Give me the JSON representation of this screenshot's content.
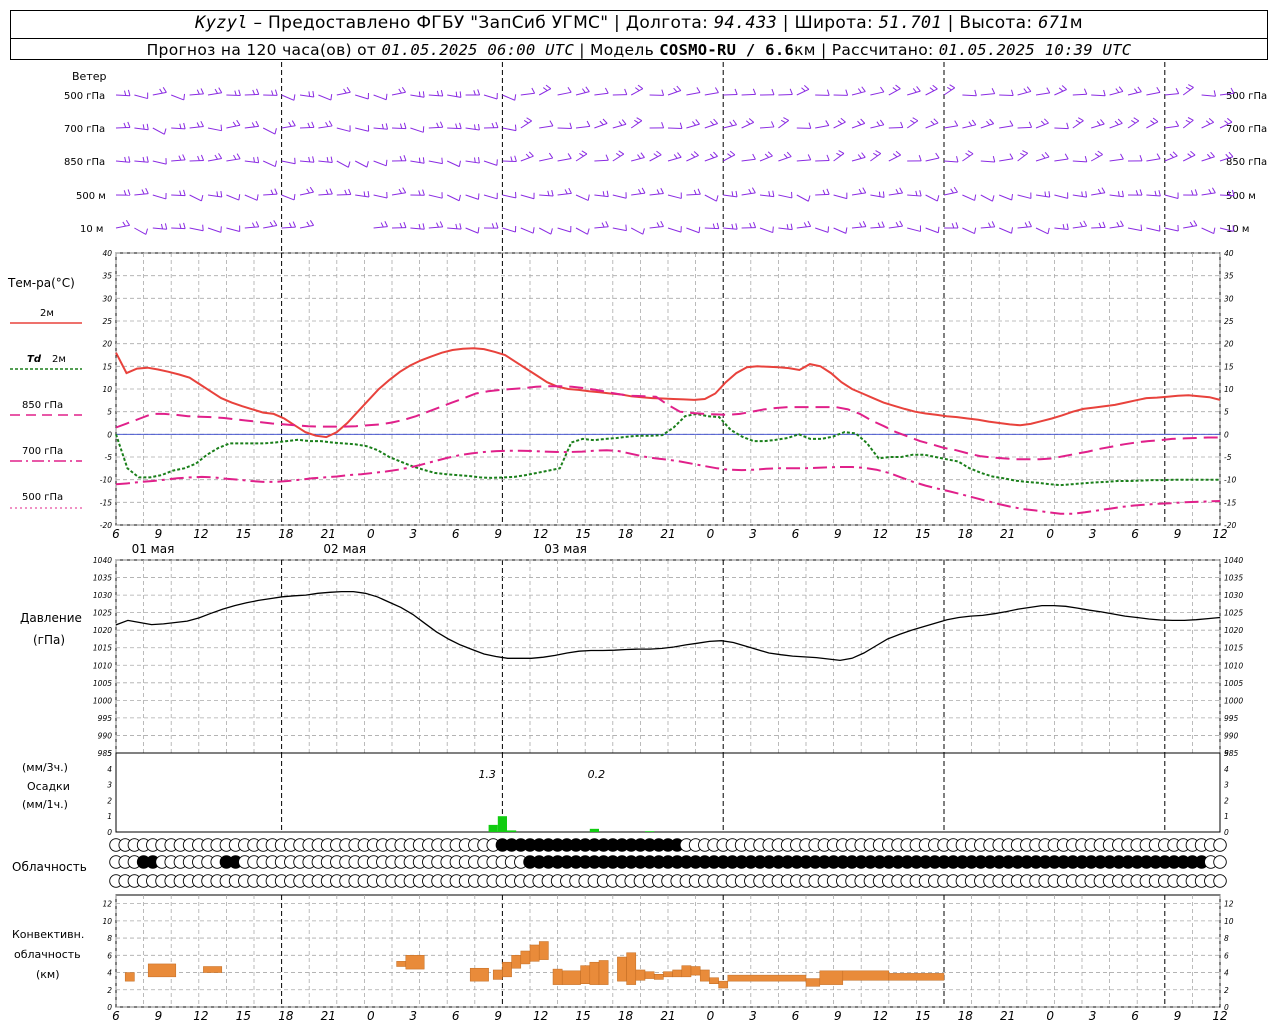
{
  "header": {
    "station": "Kyzyl",
    "provider": " – Предоставлено ФГБУ \"ЗапСиб УГМС\" | Долгота: ",
    "lon": "94.433",
    "lat_label": " | Широта: ",
    "lat": "51.701",
    "alt_label": " | Высота: ",
    "alt": "671",
    "alt_unit": "м",
    "forecast_label": "Прогноз на 120 часа(ов) от ",
    "forecast_from": "01.05.2025 06:00 UTC",
    "model_label": " | Модель ",
    "model": "COSMO-RU / 6.6",
    "model_unit": "км",
    "calc_label": " | Рассчитано: ",
    "calc_time": "01.05.2025 10:39 UTC"
  },
  "labels": {
    "wind": "Ветер",
    "levels": [
      "500 гПа",
      "700 гПа",
      "850 гПа",
      "500 м",
      "10 м"
    ],
    "temp": "Тем-ра(°C)",
    "t2m": "2м",
    "td2m_a": "Td",
    "td2m_b": "2м",
    "t850": "850 гПа",
    "t700": "700 гПа",
    "t500": "500 гПа",
    "pressure": "Давление",
    "pressure_unit": "(гПа)",
    "precip_unit3": "(мм/3ч.)",
    "precip": "Осадки",
    "precip_unit1": "(мм/1ч.)",
    "cloud": "Облачность",
    "conv1": "Конвективн.",
    "conv2": "облачность",
    "conv3": "(км)",
    "precip_total1": "1.3",
    "precip_total2": "0.2"
  },
  "colors": {
    "t2m": "#e8423c",
    "td2m": "#1a7f1a",
    "t850": "#e0208a",
    "t700": "#e0208a",
    "wind": "#8a2be2",
    "precip": "#11cc11",
    "conv": "#e98b3a"
  },
  "chart_data": [
    {
      "type": "line",
      "title": "Тем-ра(°C)",
      "x_hours": [
        6,
        7,
        8,
        9,
        10,
        11,
        12,
        13,
        14,
        15,
        16,
        17,
        18,
        19,
        20,
        21,
        22,
        23,
        24,
        25,
        26,
        27,
        28,
        29,
        30,
        31,
        32,
        33,
        34,
        35,
        36,
        37,
        38,
        39,
        40,
        41,
        42,
        43,
        44,
        45,
        46,
        47,
        48,
        49,
        50,
        51,
        52,
        53,
        54,
        55,
        56,
        57,
        58,
        59,
        60,
        61,
        62,
        63,
        64,
        65,
        66,
        67,
        68,
        69,
        70,
        71,
        72,
        73,
        74,
        75,
        76,
        77,
        78,
        79,
        80,
        81,
        82,
        83,
        84,
        85,
        86,
        87,
        88,
        89,
        90,
        91,
        92,
        93,
        94,
        95,
        96,
        97,
        98,
        99,
        100,
        101,
        102,
        103,
        104,
        105,
        106,
        107,
        108,
        109,
        110,
        111,
        112,
        113,
        114,
        115,
        116,
        117,
        118,
        119,
        120,
        121,
        122,
        123,
        124,
        125,
        126
      ],
      "x_ticks": [
        "6",
        "9",
        "12",
        "15",
        "18",
        "21",
        "0",
        "3",
        "6",
        "9",
        "12",
        "15",
        "18",
        "21",
        "0",
        "3",
        "6",
        "9",
        "12",
        "15",
        "18",
        "21",
        "0",
        "3",
        "6",
        "9",
        "12"
      ],
      "day_labels": [
        "01 мая",
        "02 мая",
        "03 мая"
      ],
      "ylim": [
        -20,
        40
      ],
      "series": [
        {
          "name": "2м",
          "values": [
            18,
            13.5,
            14.5,
            14.7,
            14.3,
            13.8,
            13.2,
            12.5,
            11,
            9.5,
            8,
            7,
            6.2,
            5.5,
            4.8,
            4.5,
            3.5,
            2,
            0.5,
            -0.3,
            -0.6,
            0.5,
            2.5,
            5,
            7.5,
            10,
            12,
            13.8,
            15.2,
            16.3,
            17.2,
            18,
            18.6,
            18.9,
            19,
            18.8,
            18.2,
            17.5,
            16,
            14.5,
            13,
            11.5,
            10.5,
            10,
            9.8,
            9.5,
            9.3,
            9,
            8.8,
            8.4,
            8.2,
            8,
            7.9,
            7.8,
            7.7,
            7.6,
            7.8,
            9,
            11.5,
            13.5,
            14.8,
            15,
            14.9,
            14.8,
            14.6,
            14.2,
            15.5,
            15,
            13.5,
            11.5,
            10,
            9,
            8,
            7,
            6.3,
            5.6,
            5,
            4.6,
            4.3,
            4,
            3.8,
            3.5,
            3.2,
            2.8,
            2.5,
            2.2,
            2,
            2.3,
            2.9,
            3.5,
            4.2,
            5,
            5.6,
            5.9,
            6.2,
            6.5,
            7,
            7.5,
            8,
            8.1,
            8.3,
            8.5,
            8.6,
            8.4,
            8.2,
            7.6
          ]
        },
        {
          "name": "Td 2м",
          "values": [
            0,
            -7.5,
            -9.5,
            -9.5,
            -9,
            -8,
            -7.5,
            -6.5,
            -4.5,
            -3,
            -2,
            -2,
            -2,
            -2,
            -1.8,
            -1.5,
            -1.2,
            -1.5,
            -1.5,
            -1.8,
            -2,
            -2.2,
            -2.6,
            -3.5,
            -5,
            -6,
            -7,
            -7.8,
            -8.5,
            -8.8,
            -9,
            -9.2,
            -9.5,
            -9.6,
            -9.5,
            -9.4,
            -9,
            -8.5,
            -8,
            -7.5,
            -1.8,
            -1,
            -1.3,
            -1,
            -0.8,
            -0.5,
            -0.3,
            -0.3,
            -0.2,
            1.5,
            4,
            4.5,
            4,
            3.8,
            1,
            -0.5,
            -1.5,
            -1.5,
            -1.2,
            -0.8,
            0,
            -1,
            -1,
            -0.5,
            0.5,
            0.2,
            -2,
            -5.3,
            -5,
            -5,
            -4.5,
            -4.5,
            -5,
            -5.5,
            -6,
            -7.5,
            -8.5,
            -9.3,
            -9.7,
            -10.2,
            -10.5,
            -10.7,
            -11,
            -11.2,
            -11,
            -10.8,
            -10.6,
            -10.5,
            -10.3,
            -10.3,
            -10.2,
            -10.1,
            -10.1,
            -10,
            -10,
            -10,
            -10,
            -10
          ]
        },
        {
          "name": "850 гПа",
          "values": [
            1.5,
            2.5,
            3.5,
            4.5,
            4.5,
            4.3,
            4,
            3.9,
            3.8,
            3.6,
            3.3,
            3,
            2.7,
            2.4,
            2.2,
            2,
            1.8,
            1.7,
            1.7,
            1.7,
            1.8,
            2,
            2.2,
            2.6,
            3.2,
            4,
            5,
            6,
            7,
            8,
            9,
            9.5,
            9.8,
            10,
            10.2,
            10.5,
            10.6,
            10.6,
            10.5,
            10.2,
            9.8,
            9.3,
            8.8,
            8.5,
            8.4,
            8.3,
            6.5,
            5,
            4.7,
            4.5,
            4.4,
            4.3,
            4.5,
            5,
            5.5,
            5.8,
            6,
            6,
            6,
            6,
            6,
            5.5,
            4.5,
            3,
            1.8,
            0.5,
            -0.5,
            -1.5,
            -2.2,
            -3,
            -3.5,
            -4.2,
            -4.8,
            -5.1,
            -5.3,
            -5.5,
            -5.5,
            -5.5,
            -5.3,
            -4.8,
            -4.3,
            -3.8,
            -3.2,
            -2.7,
            -2.2,
            -1.8,
            -1.5,
            -1.3,
            -1,
            -0.9,
            -0.8,
            -0.7,
            -0.7
          ]
        },
        {
          "name": "700 гПа",
          "values": [
            -11,
            -10.8,
            -10.5,
            -10.3,
            -10,
            -9.7,
            -9.5,
            -9.4,
            -9.5,
            -9.8,
            -10,
            -10.3,
            -10.5,
            -10.5,
            -10.3,
            -10,
            -9.7,
            -9.5,
            -9.3,
            -9,
            -8.8,
            -8.5,
            -8.2,
            -7.8,
            -7.3,
            -6.6,
            -5.9,
            -5.2,
            -4.6,
            -4.2,
            -3.9,
            -3.7,
            -3.6,
            -3.6,
            -3.7,
            -3.8,
            -3.9,
            -3.9,
            -3.8,
            -3.6,
            -3.5,
            -3.7,
            -4.3,
            -4.9,
            -5.3,
            -5.6,
            -6,
            -6.5,
            -7,
            -7.5,
            -7.8,
            -7.9,
            -7.8,
            -7.6,
            -7.5,
            -7.5,
            -7.5,
            -7.4,
            -7.3,
            -7.2,
            -7.2,
            -7.4,
            -7.8,
            -8.5,
            -9.5,
            -10.5,
            -11.3,
            -12,
            -12.6,
            -13.3,
            -14,
            -14.7,
            -15.4,
            -16,
            -16.5,
            -16.8,
            -17.2,
            -17.5,
            -17.5,
            -17.2,
            -16.8,
            -16.4,
            -16,
            -15.7,
            -15.5,
            -15.3,
            -15.2,
            -15,
            -14.9,
            -14.8,
            -14.7
          ]
        }
      ]
    },
    {
      "type": "line",
      "title": "Давление",
      "ylabel": "(гПа)",
      "ylim": [
        985,
        1040
      ],
      "values": [
        1021.5,
        1022.8,
        1022.2,
        1021.6,
        1021.8,
        1022.2,
        1022.6,
        1023.5,
        1024.8,
        1026,
        1027,
        1027.8,
        1028.5,
        1029,
        1029.5,
        1029.8,
        1030,
        1030.5,
        1030.8,
        1031,
        1031,
        1030.5,
        1029.5,
        1028,
        1026.5,
        1024.5,
        1022,
        1019.5,
        1017.5,
        1015.8,
        1014.5,
        1013.2,
        1012.5,
        1012,
        1012,
        1012,
        1012.3,
        1012.8,
        1013.5,
        1014,
        1014.2,
        1014.2,
        1014.3,
        1014.5,
        1014.6,
        1014.6,
        1014.8,
        1015.2,
        1015.8,
        1016.3,
        1016.8,
        1017,
        1016.5,
        1015.5,
        1014.5,
        1013.5,
        1013,
        1012.6,
        1012.4,
        1012.2,
        1011.8,
        1011.4,
        1012,
        1013.5,
        1015.5,
        1017.5,
        1018.8,
        1020,
        1021,
        1022,
        1023,
        1023.6,
        1024,
        1024.2,
        1024.7,
        1025.3,
        1026,
        1026.5,
        1027,
        1027,
        1026.8,
        1026.3,
        1025.7,
        1025.2,
        1024.6,
        1024,
        1023.6,
        1023.2,
        1022.9,
        1022.8,
        1022.8,
        1023,
        1023.3,
        1023.6
      ]
    },
    {
      "type": "bar",
      "title": "Осадки",
      "ylabel": "(мм/3ч.) (мм/1ч.)",
      "ylim": [
        0,
        5
      ],
      "bars": [
        {
          "hour": 47,
          "value": 0.45
        },
        {
          "hour": 48,
          "value": 1.0
        },
        {
          "hour": 49,
          "value": 0.1
        },
        {
          "hour": 58,
          "value": 0.2
        },
        {
          "hour": 64,
          "value": 0.05
        }
      ],
      "totals": [
        {
          "hour": 47,
          "label": "1.3"
        },
        {
          "hour": 58,
          "label": "0.2"
        }
      ]
    },
    {
      "type": "bar",
      "title": "Конвективн. облачность (км)",
      "ylim": [
        0,
        13
      ],
      "segments": [
        {
          "h": [
            7,
            8
          ],
          "lo": 3,
          "hi": 4
        },
        {
          "h": [
            9.5,
            12.5
          ],
          "lo": 3.5,
          "hi": 5
        },
        {
          "h": [
            15.5,
            17.5
          ],
          "lo": 4,
          "hi": 4.7
        },
        {
          "h": [
            36.5,
            37.5
          ],
          "lo": 4.7,
          "hi": 5.3
        },
        {
          "h": [
            37.5,
            39.5
          ],
          "lo": 4.4,
          "hi": 6
        },
        {
          "h": [
            44.5,
            46.5
          ],
          "lo": 3,
          "hi": 4.5
        },
        {
          "h": [
            47,
            48
          ],
          "lo": 3.2,
          "hi": 4.3
        },
        {
          "h": [
            48,
            49
          ],
          "lo": 3.5,
          "hi": 5.2
        },
        {
          "h": [
            49,
            50
          ],
          "lo": 4.5,
          "hi": 6
        },
        {
          "h": [
            50,
            51
          ],
          "lo": 5,
          "hi": 6.5
        },
        {
          "h": [
            51,
            52
          ],
          "lo": 5.3,
          "hi": 7.2
        },
        {
          "h": [
            52,
            53
          ],
          "lo": 5.5,
          "hi": 7.6
        },
        {
          "h": [
            53.5,
            54.5
          ],
          "lo": 2.6,
          "hi": 4.4
        },
        {
          "h": [
            54.5,
            56.5
          ],
          "lo": 2.6,
          "hi": 4.2
        },
        {
          "h": [
            56.5,
            57.5
          ],
          "lo": 2.7,
          "hi": 4.8
        },
        {
          "h": [
            57.5,
            58.5
          ],
          "lo": 2.6,
          "hi": 5.2
        },
        {
          "h": [
            58.5,
            59.5
          ],
          "lo": 2.6,
          "hi": 5.4
        },
        {
          "h": [
            60.5,
            61.5
          ],
          "lo": 3,
          "hi": 5.8
        },
        {
          "h": [
            61.5,
            62.5
          ],
          "lo": 2.6,
          "hi": 6.3
        },
        {
          "h": [
            62.5,
            63.5
          ],
          "lo": 3.1,
          "hi": 4.3
        },
        {
          "h": [
            63.5,
            64.5
          ],
          "lo": 3.3,
          "hi": 4.1
        },
        {
          "h": [
            64.5,
            65.5
          ],
          "lo": 3.2,
          "hi": 3.8
        },
        {
          "h": [
            65.5,
            66.5
          ],
          "lo": 3.5,
          "hi": 4.1
        },
        {
          "h": [
            66.5,
            67.5
          ],
          "lo": 3.5,
          "hi": 4.3
        },
        {
          "h": [
            67.5,
            68.5
          ],
          "lo": 3.5,
          "hi": 4.8
        },
        {
          "h": [
            68.5,
            69.5
          ],
          "lo": 3.7,
          "hi": 4.7
        },
        {
          "h": [
            69.5,
            70.5
          ],
          "lo": 3.0,
          "hi": 4.3
        },
        {
          "h": [
            70.5,
            71.5
          ],
          "lo": 2.7,
          "hi": 3.4
        },
        {
          "h": [
            71.5,
            72.5
          ],
          "lo": 2.2,
          "hi": 3.0
        },
        {
          "h": [
            72.5,
            81
          ],
          "lo": 3.0,
          "hi": 3.7
        },
        {
          "h": [
            81,
            82.5
          ],
          "lo": 2.4,
          "hi": 3.3
        },
        {
          "h": [
            82.5,
            85
          ],
          "lo": 2.6,
          "hi": 4.2
        },
        {
          "h": [
            85,
            90
          ],
          "lo": 3.1,
          "hi": 4.2
        },
        {
          "h": [
            90,
            96
          ],
          "lo": 3.1,
          "hi": 3.9
        }
      ]
    }
  ],
  "cloud_rows": {
    "row1_dark_hours": [
      48,
      49,
      50,
      51,
      52,
      53,
      54,
      55,
      56,
      57,
      58,
      59,
      60,
      61,
      62,
      63,
      64,
      65,
      66,
      67
    ],
    "row2_dark_hours": [
      9,
      10,
      18,
      19,
      51,
      52,
      53,
      54,
      55,
      56,
      57,
      58,
      59,
      60,
      61,
      62,
      63,
      64,
      65,
      66,
      67,
      68,
      69,
      70,
      71,
      72,
      73,
      74,
      75,
      76,
      77,
      78,
      79,
      80,
      81,
      82,
      83,
      84,
      85,
      86,
      87,
      88,
      89,
      90,
      91,
      92,
      93,
      94,
      95,
      96,
      97,
      98,
      99,
      100,
      101,
      102,
      103,
      104,
      105,
      106,
      107,
      108,
      109,
      110,
      111,
      112,
      113,
      114,
      115,
      116,
      117,
      118,
      119,
      120,
      121,
      122,
      123,
      124
    ]
  }
}
